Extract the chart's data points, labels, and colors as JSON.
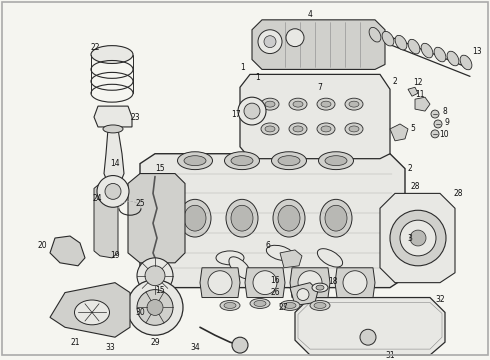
{
  "background_color": "#f5f5f0",
  "fig_width": 4.9,
  "fig_height": 3.6,
  "dpi": 100,
  "line_color": "#2a2a2a",
  "fill_light": "#e8e8e4",
  "fill_mid": "#d0d0cc",
  "fill_dark": "#b8b8b4"
}
